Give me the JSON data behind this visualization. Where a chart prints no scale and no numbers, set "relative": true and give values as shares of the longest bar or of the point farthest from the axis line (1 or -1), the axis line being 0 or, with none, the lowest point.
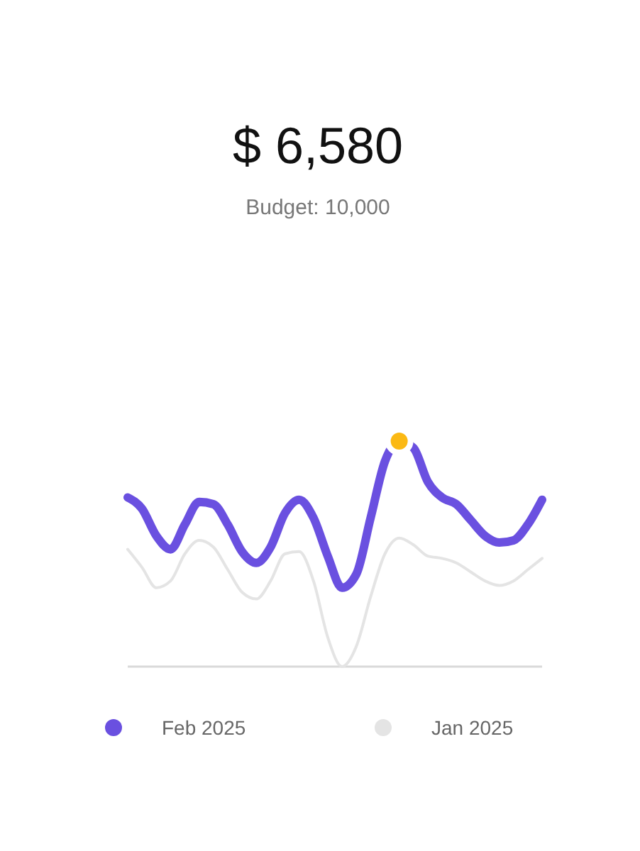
{
  "chart_data": {
    "type": "line",
    "title": "$ 6,580",
    "subtitle": "Budget: 10,000",
    "relative": true,
    "legend": "bottom",
    "categories": [
      null,
      null,
      null,
      null,
      null,
      null,
      null,
      null,
      null,
      null,
      null,
      null,
      null,
      null,
      null,
      null,
      null,
      null,
      null,
      null,
      null,
      null,
      null,
      null,
      null,
      null,
      null,
      null,
      null,
      null
    ],
    "series": [
      {
        "name": "Feb 2025",
        "color": "#6a50e0",
        "values": [
          0.75,
          0.7,
          0.58,
          0.52,
          0.63,
          0.73,
          0.72,
          0.63,
          0.51,
          0.46,
          0.53,
          0.68,
          0.74,
          0.66,
          0.49,
          0.35,
          0.41,
          0.66,
          0.91,
          1,
          0.97,
          0.82,
          0.75,
          0.72,
          0.65,
          0.58,
          0.55,
          0.56,
          0.63,
          0.74
        ]
      },
      {
        "name": "Jan 2025",
        "color": "#e4e4e4",
        "values": [
          0.52,
          0.44,
          0.35,
          0.38,
          0.5,
          0.56,
          0.53,
          0.43,
          0.33,
          0.3,
          0.38,
          0.5,
          0.51,
          0.38,
          0.13,
          0,
          0.09,
          0.31,
          0.5,
          0.57,
          0.54,
          0.49,
          0.48,
          0.46,
          0.42,
          0.38,
          0.36,
          0.38,
          0.43,
          0.48
        ]
      },
      {
        "type": "line",
        "marker": "circle",
        "color": "#fbb914",
        "values": [
          null,
          null,
          null,
          null,
          null,
          null,
          null,
          null,
          null,
          null,
          null,
          null,
          null,
          null,
          null,
          null,
          null,
          null,
          null,
          1,
          null,
          null,
          null,
          null,
          null,
          null,
          null,
          null,
          null,
          null
        ]
      }
    ]
  }
}
